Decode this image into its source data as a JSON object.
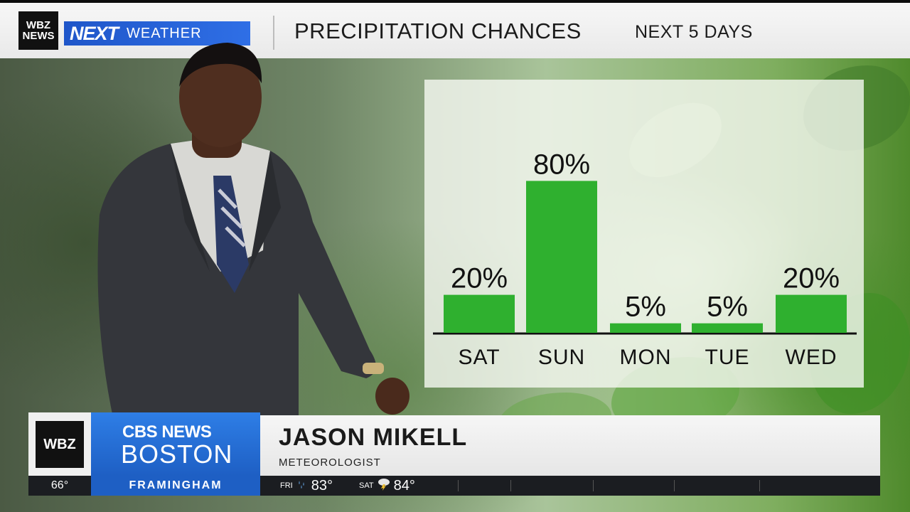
{
  "header": {
    "station_logo": [
      "WBZ",
      "NEWS"
    ],
    "brand_next": "NEXT",
    "brand_weather": "WEATHER",
    "title": "PRECIPITATION CHANCES",
    "subtitle": "NEXT 5 DAYS"
  },
  "chart_data": {
    "type": "bar",
    "categories": [
      "SAT",
      "SUN",
      "MON",
      "TUE",
      "WED"
    ],
    "values": [
      20,
      80,
      5,
      5,
      20
    ],
    "data_labels": [
      "20%",
      "80%",
      "5%",
      "5%",
      "20%"
    ],
    "ylim": [
      0,
      100
    ],
    "bar_color": "#2fb02f",
    "grid": false,
    "legend": "none"
  },
  "lower_third": {
    "logo": "WBZ",
    "network_line1": "CBS NEWS",
    "network_line2": "BOSTON",
    "name": "JASON MIKELL",
    "title": "METEOROLOGIST"
  },
  "ticker": {
    "current_temp": "66°",
    "location": "FRAMINGHAM",
    "forecast": [
      {
        "day": "FRI",
        "icon": "rain-icon",
        "temp": "83°"
      },
      {
        "day": "SAT",
        "icon": "thunderstorm-icon",
        "temp": "84°"
      }
    ]
  },
  "colors": {
    "brand_blue": "#1f56c9",
    "bar_green": "#2fb02f"
  }
}
